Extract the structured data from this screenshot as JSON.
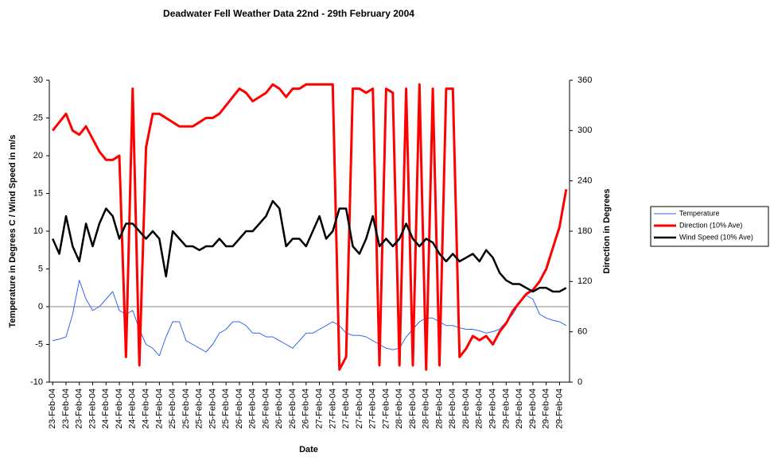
{
  "chart_data": {
    "type": "line",
    "title": "Deadwater Fell Weather Data 22nd - 29th February 2004",
    "x_label": "Date",
    "y_label": "Temperature in Degrees C / Wind Speed in m/s",
    "y2_label": "Direction in Degrees",
    "categories": [
      "23-Feb-04",
      null,
      "23-Feb-04",
      null,
      "23-Feb-04",
      null,
      "23-Feb-04",
      null,
      "24-Feb-04",
      null,
      "24-Feb-04",
      null,
      "24-Feb-04",
      null,
      "24-Feb-04",
      null,
      "24-Feb-04",
      null,
      "25-Feb-04",
      null,
      "25-Feb-04",
      null,
      "25-Feb-04",
      null,
      "25-Feb-04",
      null,
      "25-Feb-04",
      null,
      "26-Feb-04",
      null,
      "26-Feb-04",
      null,
      "26-Feb-04",
      null,
      "26-Feb-04",
      null,
      "26-Feb-04",
      null,
      "26-Feb-04",
      null,
      "27-Feb-04",
      null,
      "27-Feb-04",
      null,
      "27-Feb-04",
      null,
      "27-Feb-04",
      null,
      "27-Feb-04",
      null,
      "27-Feb-04",
      null,
      "28-Feb-04",
      null,
      "28-Feb-04",
      null,
      "28-Feb-04",
      null,
      "28-Feb-04",
      null,
      "28-Feb-04",
      null,
      "28-Feb-04",
      null,
      "28-Feb-04",
      null,
      "29-Feb-04",
      null,
      "29-Feb-04",
      null,
      "29-Feb-04",
      null,
      "29-Feb-04",
      null,
      "29-Feb-04",
      null,
      "29-Feb-04",
      null
    ],
    "series": [
      {
        "name": "Temperature",
        "color": "#3366ee",
        "width": 1,
        "axis": "y",
        "values": [
          -4.5,
          -4.3,
          -4,
          -1,
          3.5,
          1,
          -0.5,
          0,
          1,
          2,
          -0.5,
          -1,
          -0.5,
          -3,
          -5,
          -5.5,
          -6.5,
          -4,
          -2,
          -2,
          -4.5,
          -5,
          -5.5,
          -6,
          -5,
          -3.5,
          -3,
          -2,
          -2,
          -2.5,
          -3.5,
          -3.5,
          -4,
          -4,
          -4.5,
          -5,
          -5.5,
          -4.5,
          -3.5,
          -3.5,
          -3,
          -2.5,
          -2,
          -2.5,
          -3.5,
          -3.8,
          -3.8,
          -4,
          -4.5,
          -5,
          -5.5,
          -5.7,
          -5.5,
          -4,
          -3,
          -2,
          -1.5,
          -1.5,
          -2,
          -2.5,
          -2.5,
          -2.8,
          -3,
          -3,
          -3.2,
          -3.5,
          -3.3,
          -3,
          -2,
          -1,
          0.5,
          1.5,
          1,
          -1,
          -1.5,
          -1.8,
          -2,
          -2.5
        ]
      },
      {
        "name": "Direction (10% Ave)",
        "color": "#ff0000",
        "width": 3,
        "axis": "y2",
        "values": [
          300,
          310,
          320,
          300,
          295,
          305,
          290,
          275,
          265,
          265,
          270,
          30,
          350,
          20,
          280,
          320,
          320,
          315,
          310,
          305,
          305,
          305,
          310,
          315,
          315,
          320,
          330,
          340,
          350,
          345,
          335,
          340,
          345,
          355,
          350,
          340,
          350,
          350,
          355,
          355,
          355,
          355,
          355,
          15,
          30,
          350,
          350,
          345,
          350,
          20,
          350,
          345,
          20,
          350,
          20,
          355,
          15,
          350,
          20,
          350,
          350,
          30,
          40,
          55,
          50,
          55,
          45,
          60,
          70,
          85,
          95,
          105,
          110,
          120,
          135,
          160,
          185,
          230
        ]
      },
      {
        "name": "Wind Speed (10% Ave)",
        "color": "#000000",
        "width": 2.5,
        "axis": "y",
        "values": [
          9,
          7,
          12,
          8,
          6,
          11,
          8,
          11,
          13,
          12,
          9,
          11,
          11,
          10,
          9,
          10,
          9,
          4,
          10,
          9,
          8,
          8,
          7.5,
          8,
          8,
          9,
          8,
          8,
          9,
          10,
          10,
          11,
          12,
          14,
          13,
          8,
          9,
          9,
          8,
          10,
          12,
          9,
          10,
          13,
          13,
          8,
          7,
          9,
          12,
          8,
          9,
          8,
          9,
          11,
          9,
          8,
          9,
          8.5,
          7,
          6,
          7,
          6,
          6.5,
          7,
          6,
          7.5,
          6.5,
          4.5,
          3.5,
          3,
          3,
          2.5,
          2,
          2.5,
          2.5,
          2,
          2,
          2.5
        ]
      }
    ],
    "ylim": [
      -10,
      30
    ],
    "yticks": [
      -10,
      -5,
      0,
      5,
      10,
      15,
      20,
      25,
      30
    ],
    "y2lim": [
      0,
      360
    ],
    "y2ticks": [
      0,
      60,
      120,
      180,
      240,
      300,
      360
    ],
    "legend": "right"
  }
}
